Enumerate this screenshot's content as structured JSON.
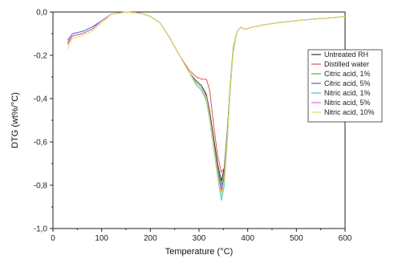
{
  "chart_data": {
    "type": "line",
    "xlabel": "Temperature (°C)",
    "ylabel": "DTG (wt%/°C)",
    "xlim": [
      0,
      600
    ],
    "ylim": [
      -1.0,
      0.0
    ],
    "xticks": [
      "0",
      "100",
      "200",
      "300",
      "400",
      "500",
      "600"
    ],
    "yticks": [
      "0,0",
      "-0,2",
      "-0,4",
      "-0,6",
      "-0,8",
      "-1,0"
    ],
    "grid": false,
    "legend_position": "right",
    "series": [
      {
        "name": "Untreated RH",
        "color": "#333333",
        "x": [
          30,
          40,
          60,
          80,
          100,
          120,
          150,
          180,
          200,
          220,
          240,
          260,
          280,
          295,
          305,
          315,
          322,
          330,
          338,
          346,
          352,
          358,
          364,
          370,
          378,
          386,
          395,
          410,
          430,
          460,
          500,
          550,
          580,
          600
        ],
        "y": [
          -0.14,
          -0.11,
          -0.1,
          -0.08,
          -0.04,
          -0.01,
          0.0,
          -0.005,
          -0.02,
          -0.05,
          -0.12,
          -0.2,
          -0.28,
          -0.32,
          -0.34,
          -0.38,
          -0.46,
          -0.58,
          -0.7,
          -0.78,
          -0.72,
          -0.55,
          -0.35,
          -0.18,
          -0.09,
          -0.07,
          -0.08,
          -0.07,
          -0.06,
          -0.05,
          -0.04,
          -0.03,
          -0.025,
          -0.02
        ]
      },
      {
        "name": "Distilled water",
        "color": "#e85050",
        "x": [
          30,
          40,
          60,
          80,
          100,
          120,
          150,
          180,
          200,
          220,
          240,
          260,
          280,
          295,
          305,
          315,
          322,
          330,
          338,
          346,
          352,
          358,
          364,
          370,
          378,
          386,
          395,
          410,
          430,
          460,
          500,
          550,
          580,
          600
        ],
        "y": [
          -0.15,
          -0.11,
          -0.1,
          -0.08,
          -0.04,
          -0.01,
          0.0,
          -0.005,
          -0.02,
          -0.05,
          -0.12,
          -0.2,
          -0.27,
          -0.3,
          -0.31,
          -0.31,
          -0.36,
          -0.52,
          -0.66,
          -0.74,
          -0.72,
          -0.56,
          -0.34,
          -0.17,
          -0.09,
          -0.07,
          -0.08,
          -0.07,
          -0.06,
          -0.05,
          -0.04,
          -0.03,
          -0.025,
          -0.02
        ]
      },
      {
        "name": "Citric acid, 1%",
        "color": "#50b050",
        "x": [
          30,
          40,
          60,
          80,
          100,
          120,
          150,
          180,
          200,
          220,
          240,
          260,
          280,
          295,
          305,
          315,
          322,
          330,
          338,
          346,
          352,
          358,
          364,
          370,
          378,
          386,
          395,
          410,
          430,
          460,
          500,
          550,
          580,
          600
        ],
        "y": [
          -0.14,
          -0.11,
          -0.1,
          -0.08,
          -0.04,
          -0.01,
          0.0,
          -0.005,
          -0.02,
          -0.05,
          -0.12,
          -0.2,
          -0.28,
          -0.33,
          -0.35,
          -0.39,
          -0.48,
          -0.6,
          -0.72,
          -0.8,
          -0.74,
          -0.56,
          -0.34,
          -0.17,
          -0.09,
          -0.07,
          -0.08,
          -0.07,
          -0.06,
          -0.05,
          -0.04,
          -0.03,
          -0.025,
          -0.02
        ]
      },
      {
        "name": "Citric acid, 5%",
        "color": "#5060d0",
        "x": [
          30,
          40,
          60,
          80,
          100,
          120,
          150,
          180,
          200,
          220,
          240,
          260,
          280,
          295,
          305,
          315,
          322,
          330,
          338,
          346,
          352,
          358,
          364,
          370,
          378,
          386,
          395,
          410,
          430,
          460,
          500,
          550,
          580,
          600
        ],
        "y": [
          -0.13,
          -0.1,
          -0.09,
          -0.07,
          -0.04,
          -0.01,
          0.0,
          -0.005,
          -0.02,
          -0.05,
          -0.12,
          -0.2,
          -0.28,
          -0.33,
          -0.35,
          -0.4,
          -0.49,
          -0.61,
          -0.73,
          -0.82,
          -0.76,
          -0.58,
          -0.36,
          -0.18,
          -0.09,
          -0.07,
          -0.08,
          -0.07,
          -0.06,
          -0.05,
          -0.04,
          -0.03,
          -0.025,
          -0.02
        ]
      },
      {
        "name": "Nitric acid, 1%",
        "color": "#40c8d8",
        "x": [
          30,
          40,
          60,
          80,
          100,
          120,
          150,
          180,
          200,
          220,
          240,
          260,
          280,
          295,
          305,
          315,
          322,
          330,
          338,
          346,
          352,
          358,
          364,
          370,
          378,
          386,
          395,
          410,
          430,
          460,
          500,
          550,
          580,
          600
        ],
        "y": [
          -0.14,
          -0.11,
          -0.1,
          -0.08,
          -0.04,
          -0.01,
          0.0,
          -0.005,
          -0.02,
          -0.05,
          -0.12,
          -0.2,
          -0.28,
          -0.34,
          -0.36,
          -0.41,
          -0.5,
          -0.63,
          -0.76,
          -0.87,
          -0.8,
          -0.6,
          -0.37,
          -0.19,
          -0.09,
          -0.07,
          -0.08,
          -0.07,
          -0.06,
          -0.05,
          -0.04,
          -0.03,
          -0.025,
          -0.02
        ]
      },
      {
        "name": "Nitric acid, 5%",
        "color": "#e070d0",
        "x": [
          30,
          40,
          60,
          80,
          100,
          120,
          150,
          180,
          200,
          220,
          240,
          260,
          280,
          295,
          305,
          315,
          322,
          330,
          338,
          346,
          352,
          358,
          364,
          370,
          378,
          386,
          395,
          410,
          430,
          460,
          500,
          550,
          580,
          600
        ],
        "y": [
          -0.14,
          -0.11,
          -0.1,
          -0.08,
          -0.04,
          -0.01,
          0.0,
          -0.005,
          -0.02,
          -0.05,
          -0.12,
          -0.2,
          -0.28,
          -0.33,
          -0.35,
          -0.39,
          -0.48,
          -0.61,
          -0.74,
          -0.83,
          -0.77,
          -0.58,
          -0.35,
          -0.18,
          -0.09,
          -0.07,
          -0.08,
          -0.07,
          -0.06,
          -0.05,
          -0.04,
          -0.03,
          -0.025,
          -0.02
        ]
      },
      {
        "name": "Nitric acid, 10%",
        "color": "#e8e050",
        "x": [
          30,
          40,
          60,
          80,
          100,
          120,
          150,
          180,
          200,
          220,
          240,
          260,
          280,
          295,
          305,
          315,
          322,
          330,
          338,
          346,
          352,
          358,
          364,
          370,
          378,
          386,
          395,
          410,
          430,
          460,
          500,
          550,
          580,
          600
        ],
        "y": [
          -0.17,
          -0.12,
          -0.11,
          -0.09,
          -0.05,
          -0.01,
          0.0,
          -0.005,
          -0.02,
          -0.05,
          -0.12,
          -0.2,
          -0.28,
          -0.33,
          -0.35,
          -0.4,
          -0.49,
          -0.62,
          -0.75,
          -0.85,
          -0.78,
          -0.59,
          -0.36,
          -0.18,
          -0.09,
          -0.07,
          -0.08,
          -0.07,
          -0.06,
          -0.05,
          -0.04,
          -0.03,
          -0.025,
          -0.02
        ]
      }
    ]
  }
}
